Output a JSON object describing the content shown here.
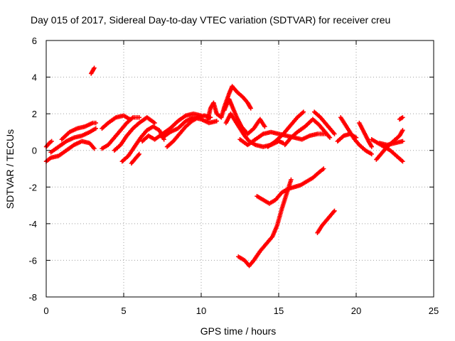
{
  "chart_data": {
    "type": "scatter",
    "title": "Day 015 of 2017, Sidereal Day-to-day VTEC variation (SDTVAR) for receiver creu",
    "xlabel": "GPS time / hours",
    "ylabel": "SDTVAR / TECUs",
    "xlim": [
      0,
      25
    ],
    "ylim": [
      -8,
      6
    ],
    "xticks": [
      0,
      5,
      10,
      15,
      20,
      25
    ],
    "yticks": [
      -8,
      -6,
      -4,
      -2,
      0,
      2,
      4,
      6
    ],
    "grid": true,
    "marker": "+",
    "color": "#ff0000",
    "series": [
      {
        "name": "t1",
        "points": [
          [
            0,
            -0.6
          ],
          [
            0.3,
            -0.4
          ],
          [
            0.8,
            -0.3
          ],
          [
            1.3,
            0.0
          ],
          [
            1.8,
            0.3
          ],
          [
            2.3,
            0.5
          ],
          [
            2.8,
            0.4
          ],
          [
            3.1,
            0.1
          ]
        ]
      },
      {
        "name": "t2",
        "points": [
          [
            0.3,
            -0.1
          ],
          [
            0.8,
            0.2
          ],
          [
            1.3,
            0.5
          ],
          [
            1.8,
            0.7
          ],
          [
            2.3,
            0.8
          ],
          [
            2.8,
            1.0
          ],
          [
            3.2,
            1.2
          ]
        ]
      },
      {
        "name": "t3",
        "points": [
          [
            1.0,
            0.6
          ],
          [
            1.5,
            1.0
          ],
          [
            2.0,
            1.2
          ],
          [
            2.5,
            1.3
          ],
          [
            3.0,
            1.5
          ],
          [
            3.2,
            1.5
          ]
        ]
      },
      {
        "name": "t4",
        "points": [
          [
            0,
            0.2
          ],
          [
            0.2,
            0.4
          ],
          [
            0.35,
            0.5
          ]
        ]
      },
      {
        "name": "t5",
        "points": [
          [
            2.9,
            4.2
          ],
          [
            3.1,
            4.5
          ]
        ]
      },
      {
        "name": "t6",
        "points": [
          [
            3.6,
            1.2
          ],
          [
            4.0,
            1.5
          ],
          [
            4.5,
            1.8
          ],
          [
            5.0,
            1.9
          ],
          [
            5.4,
            1.7
          ]
        ]
      },
      {
        "name": "t7",
        "points": [
          [
            3.6,
            0.1
          ],
          [
            4.0,
            0.3
          ],
          [
            4.4,
            0.7
          ],
          [
            4.8,
            1.1
          ],
          [
            5.2,
            1.5
          ],
          [
            5.6,
            1.8
          ],
          [
            6.0,
            1.8
          ]
        ]
      },
      {
        "name": "t8",
        "points": [
          [
            4.4,
            0.0
          ],
          [
            4.8,
            0.3
          ],
          [
            5.2,
            0.8
          ],
          [
            5.6,
            1.2
          ],
          [
            6.0,
            1.5
          ],
          [
            6.5,
            1.8
          ],
          [
            7.0,
            1.5
          ]
        ]
      },
      {
        "name": "t9",
        "points": [
          [
            4.9,
            -0.6
          ],
          [
            5.3,
            -0.3
          ],
          [
            5.7,
            0.2
          ],
          [
            6.1,
            0.7
          ],
          [
            6.5,
            1.1
          ],
          [
            6.9,
            1.3
          ],
          [
            7.3,
            1.1
          ],
          [
            7.6,
            0.6
          ]
        ]
      },
      {
        "name": "t10",
        "points": [
          [
            5.5,
            -0.7
          ],
          [
            5.8,
            -0.4
          ],
          [
            6.0,
            -0.2
          ]
        ]
      },
      {
        "name": "t11",
        "points": [
          [
            6.2,
            0.5
          ],
          [
            6.6,
            0.8
          ],
          [
            7.0,
            0.6
          ],
          [
            7.5,
            0.9
          ],
          [
            8.0,
            1.2
          ],
          [
            8.5,
            1.6
          ],
          [
            9.0,
            1.9
          ],
          [
            9.5,
            2.0
          ],
          [
            10.0,
            1.9
          ]
        ]
      },
      {
        "name": "t12",
        "points": [
          [
            7.8,
            0.2
          ],
          [
            8.2,
            0.5
          ],
          [
            8.6,
            0.9
          ],
          [
            9.0,
            1.3
          ],
          [
            9.4,
            1.6
          ],
          [
            9.8,
            1.8
          ],
          [
            10.2,
            1.9
          ],
          [
            10.6,
            1.8
          ]
        ]
      },
      {
        "name": "t13",
        "points": [
          [
            7.5,
            0.7
          ],
          [
            8.0,
            1.0
          ],
          [
            8.5,
            1.2
          ],
          [
            9.0,
            1.6
          ],
          [
            9.5,
            1.8
          ],
          [
            10.0,
            1.7
          ],
          [
            10.5,
            1.5
          ],
          [
            11.0,
            1.6
          ]
        ]
      },
      {
        "name": "t14",
        "points": [
          [
            10.4,
            1.6
          ],
          [
            10.6,
            2.3
          ],
          [
            10.8,
            2.6
          ],
          [
            11.0,
            2.0
          ],
          [
            11.3,
            1.8
          ],
          [
            11.5,
            2.4
          ],
          [
            11.8,
            3.1
          ],
          [
            12.0,
            3.5
          ],
          [
            12.3,
            3.2
          ],
          [
            12.7,
            2.9
          ],
          [
            13.0,
            2.6
          ],
          [
            13.2,
            2.3
          ]
        ]
      },
      {
        "name": "t15",
        "points": [
          [
            11.5,
            2.2
          ],
          [
            11.8,
            2.8
          ],
          [
            12.0,
            2.4
          ],
          [
            12.3,
            1.8
          ],
          [
            12.6,
            1.3
          ],
          [
            13.0,
            0.9
          ],
          [
            13.4,
            1.2
          ],
          [
            13.8,
            1.7
          ],
          [
            14.1,
            1.3
          ]
        ]
      },
      {
        "name": "t16",
        "points": [
          [
            11.6,
            1.5
          ],
          [
            11.9,
            2.0
          ],
          [
            12.2,
            1.6
          ],
          [
            12.5,
            1.2
          ],
          [
            12.8,
            0.8
          ],
          [
            13.1,
            0.5
          ],
          [
            13.5,
            0.3
          ],
          [
            14.0,
            0.2
          ],
          [
            14.5,
            0.3
          ],
          [
            15.0,
            0.5
          ],
          [
            15.3,
            0.4
          ]
        ]
      },
      {
        "name": "t17",
        "points": [
          [
            12.5,
            0.6
          ],
          [
            13.0,
            0.3
          ],
          [
            13.5,
            0.6
          ],
          [
            14.0,
            0.9
          ],
          [
            14.5,
            1.0
          ],
          [
            15.0,
            0.9
          ],
          [
            15.5,
            0.8
          ],
          [
            16.0,
            0.7
          ],
          [
            16.5,
            0.6
          ],
          [
            17.0,
            0.8
          ],
          [
            17.5,
            0.9
          ],
          [
            18.0,
            0.9
          ]
        ]
      },
      {
        "name": "t18",
        "points": [
          [
            14.3,
            0.2
          ],
          [
            14.8,
            0.5
          ],
          [
            15.3,
            0.9
          ],
          [
            15.8,
            1.4
          ],
          [
            16.2,
            1.8
          ],
          [
            16.6,
            2.1
          ]
        ]
      },
      {
        "name": "t19",
        "points": [
          [
            15.4,
            0.3
          ],
          [
            15.8,
            0.7
          ],
          [
            16.2,
            1.0
          ],
          [
            16.7,
            1.3
          ],
          [
            17.2,
            1.7
          ],
          [
            17.6,
            1.4
          ],
          [
            18.0,
            1.0
          ],
          [
            18.3,
            0.7
          ]
        ]
      },
      {
        "name": "t20",
        "points": [
          [
            17.3,
            2.1
          ],
          [
            17.7,
            1.8
          ],
          [
            18.0,
            1.5
          ],
          [
            18.3,
            1.2
          ],
          [
            18.6,
            0.9
          ]
        ]
      },
      {
        "name": "t21",
        "points": [
          [
            18.8,
            0.5
          ],
          [
            19.2,
            0.8
          ],
          [
            19.6,
            0.9
          ],
          [
            20.0,
            0.7
          ]
        ]
      },
      {
        "name": "t22",
        "points": [
          [
            19.0,
            1.8
          ],
          [
            19.3,
            1.4
          ],
          [
            19.6,
            1.0
          ],
          [
            19.9,
            0.6
          ],
          [
            20.2,
            0.3
          ],
          [
            20.6,
            0.0
          ],
          [
            21.0,
            -0.2
          ]
        ]
      },
      {
        "name": "t23",
        "points": [
          [
            20.2,
            1.5
          ],
          [
            20.5,
            1.0
          ],
          [
            20.8,
            0.5
          ],
          [
            21.0,
            0.2
          ]
        ]
      },
      {
        "name": "t24",
        "points": [
          [
            21.3,
            -0.5
          ],
          [
            21.6,
            -0.2
          ],
          [
            22.0,
            0.2
          ],
          [
            22.4,
            0.5
          ],
          [
            22.8,
            0.8
          ],
          [
            23.0,
            1.1
          ]
        ]
      },
      {
        "name": "t25",
        "points": [
          [
            21.0,
            0.6
          ],
          [
            21.4,
            0.4
          ],
          [
            21.8,
            0.2
          ],
          [
            22.2,
            0.0
          ],
          [
            22.6,
            -0.3
          ],
          [
            23.0,
            -0.6
          ]
        ]
      },
      {
        "name": "t26",
        "points": [
          [
            21.5,
            0.4
          ],
          [
            22.0,
            0.3
          ],
          [
            22.5,
            0.4
          ],
          [
            23.0,
            0.5
          ]
        ]
      },
      {
        "name": "t27",
        "points": [
          [
            22.8,
            1.7
          ],
          [
            23.0,
            1.8
          ]
        ]
      },
      {
        "name": "t28",
        "points": [
          [
            12.4,
            -5.8
          ],
          [
            12.8,
            -6.0
          ],
          [
            13.1,
            -6.3
          ],
          [
            13.4,
            -6.0
          ],
          [
            13.8,
            -5.5
          ],
          [
            14.2,
            -5.1
          ],
          [
            14.6,
            -4.7
          ],
          [
            14.9,
            -4.1
          ],
          [
            15.2,
            -3.2
          ],
          [
            15.5,
            -2.4
          ],
          [
            15.8,
            -1.6
          ]
        ]
      },
      {
        "name": "t29",
        "points": [
          [
            13.6,
            -2.5
          ],
          [
            14.0,
            -2.7
          ],
          [
            14.4,
            -2.9
          ],
          [
            14.8,
            -2.7
          ],
          [
            15.2,
            -2.3
          ],
          [
            15.6,
            -2.1
          ],
          [
            16.0,
            -2.0
          ],
          [
            16.4,
            -1.9
          ],
          [
            16.8,
            -1.7
          ],
          [
            17.2,
            -1.5
          ],
          [
            17.6,
            -1.2
          ],
          [
            17.9,
            -1.0
          ]
        ]
      },
      {
        "name": "t30",
        "points": [
          [
            17.5,
            -4.5
          ],
          [
            17.8,
            -4.1
          ],
          [
            18.1,
            -3.8
          ],
          [
            18.4,
            -3.5
          ],
          [
            18.6,
            -3.3
          ]
        ]
      }
    ]
  }
}
